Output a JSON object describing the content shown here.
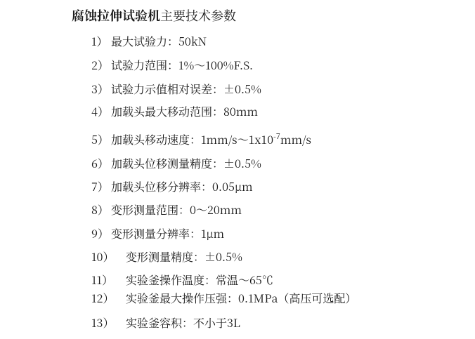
{
  "title": {
    "bold": "腐蚀拉伸试验机",
    "rest": "主要技术参数"
  },
  "items": [
    {
      "num": "1）",
      "text": "最大试验力：50kN"
    },
    {
      "num": "2）",
      "text": "试验力范围：1%～100%F.S."
    },
    {
      "num": "3）",
      "text": "试验力示值相对误差：±0.5%"
    },
    {
      "num": "4）",
      "text": "加载头最大移动范围：80mm"
    },
    {
      "num": "5）",
      "text": "加载头移动速度：1mm/s～1x10",
      "sup": "-7",
      "after": "mm/s"
    },
    {
      "num": "6）",
      "text": "加载头位移测量精度：±0.5%"
    },
    {
      "num": "7）",
      "text": "加载头位移分辨率：0.05μm"
    },
    {
      "num": "8）",
      "text": "变形测量范围：0～20mm"
    },
    {
      "num": "9）",
      "text": "变形测量分辨率：1μm"
    },
    {
      "num": "10）",
      "text": "变形测量精度：±0.5%"
    },
    {
      "num": "11）",
      "text": "实验釜操作温度：常温～65℃"
    },
    {
      "num": "12）",
      "text": "实验釜最大操作压强：0.1MPa（高压可选配）"
    },
    {
      "num": "13）",
      "text": "实验釜容积：不小于3L"
    }
  ]
}
